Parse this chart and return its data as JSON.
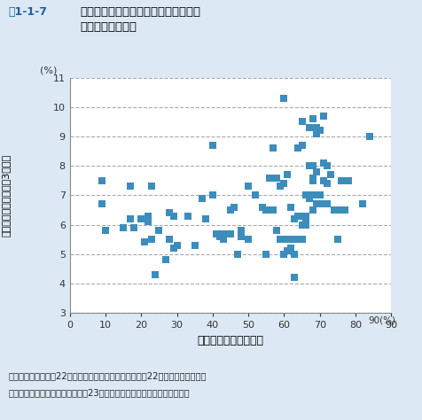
{
  "title_fig": "図1-1-7",
  "title_main": "自動車分担率と重い介護を必要とする\n人々の割合の関係",
  "xlabel": "自動車分担率（平日）",
  "ylabel": "重介護認定率（要介護3以上）",
  "xlabel_unit": "90(%)",
  "ylabel_unit": "(%)",
  "source_line1": "資料：総務省「平成22年国勢調査」、国土交通省「平成22年全国都市交通特性",
  "source_line2": "　　　調査」、厚生労働省「平成23年度介護保険事業状況報告」より作成",
  "xlim": [
    0,
    90
  ],
  "ylim": [
    3,
    11
  ],
  "xticks": [
    0,
    10,
    20,
    30,
    40,
    50,
    60,
    70,
    80,
    90
  ],
  "yticks": [
    3,
    4,
    5,
    6,
    7,
    8,
    9,
    10,
    11
  ],
  "marker_color": "#3c8dbc",
  "marker_size": 40,
  "background_color": "#dce9f5",
  "plot_background": "#ffffff",
  "scatter_x": [
    9,
    9,
    10,
    15,
    17,
    17,
    18,
    20,
    21,
    22,
    22,
    23,
    23,
    24,
    25,
    27,
    28,
    28,
    29,
    29,
    30,
    33,
    35,
    37,
    38,
    40,
    40,
    41,
    42,
    43,
    43,
    45,
    45,
    46,
    47,
    48,
    48,
    50,
    50,
    52,
    54,
    55,
    55,
    56,
    57,
    57,
    58,
    58,
    59,
    59,
    60,
    60,
    60,
    61,
    61,
    61,
    62,
    62,
    62,
    63,
    63,
    63,
    63,
    64,
    64,
    64,
    65,
    65,
    65,
    65,
    65,
    65,
    66,
    66,
    66,
    66,
    67,
    67,
    67,
    67,
    68,
    68,
    68,
    68,
    68,
    68,
    69,
    69,
    69,
    69,
    70,
    70,
    70,
    71,
    71,
    71,
    71,
    72,
    72,
    72,
    73,
    74,
    75,
    75,
    76,
    76,
    77,
    78,
    82,
    84
  ],
  "scatter_y": [
    6.7,
    7.5,
    5.8,
    5.9,
    7.3,
    6.2,
    5.9,
    6.2,
    5.4,
    6.3,
    6.1,
    5.5,
    7.3,
    4.3,
    5.8,
    4.8,
    5.5,
    6.4,
    6.3,
    5.2,
    5.3,
    6.3,
    5.3,
    6.9,
    6.2,
    8.7,
    7.0,
    5.7,
    5.6,
    5.7,
    5.5,
    5.7,
    6.5,
    6.6,
    5.0,
    5.8,
    5.6,
    7.3,
    5.5,
    7.0,
    6.6,
    6.5,
    5.0,
    7.6,
    6.5,
    8.6,
    7.6,
    5.8,
    5.5,
    7.3,
    10.3,
    5.0,
    7.4,
    5.5,
    5.1,
    7.7,
    5.2,
    5.5,
    6.6,
    5.0,
    5.5,
    6.2,
    4.2,
    6.3,
    5.5,
    8.6,
    5.5,
    6.0,
    6.3,
    8.7,
    9.5,
    9.5,
    6.2,
    6.3,
    7.0,
    6.0,
    8.0,
    7.0,
    6.9,
    9.3,
    6.5,
    7.5,
    8.0,
    7.0,
    7.6,
    9.6,
    6.7,
    7.8,
    9.3,
    9.1,
    6.7,
    7.0,
    9.2,
    7.5,
    8.1,
    7.5,
    9.7,
    7.4,
    8.0,
    6.7,
    7.7,
    6.5,
    6.5,
    5.5,
    7.5,
    6.5,
    6.5,
    7.5,
    6.7,
    9.0
  ]
}
